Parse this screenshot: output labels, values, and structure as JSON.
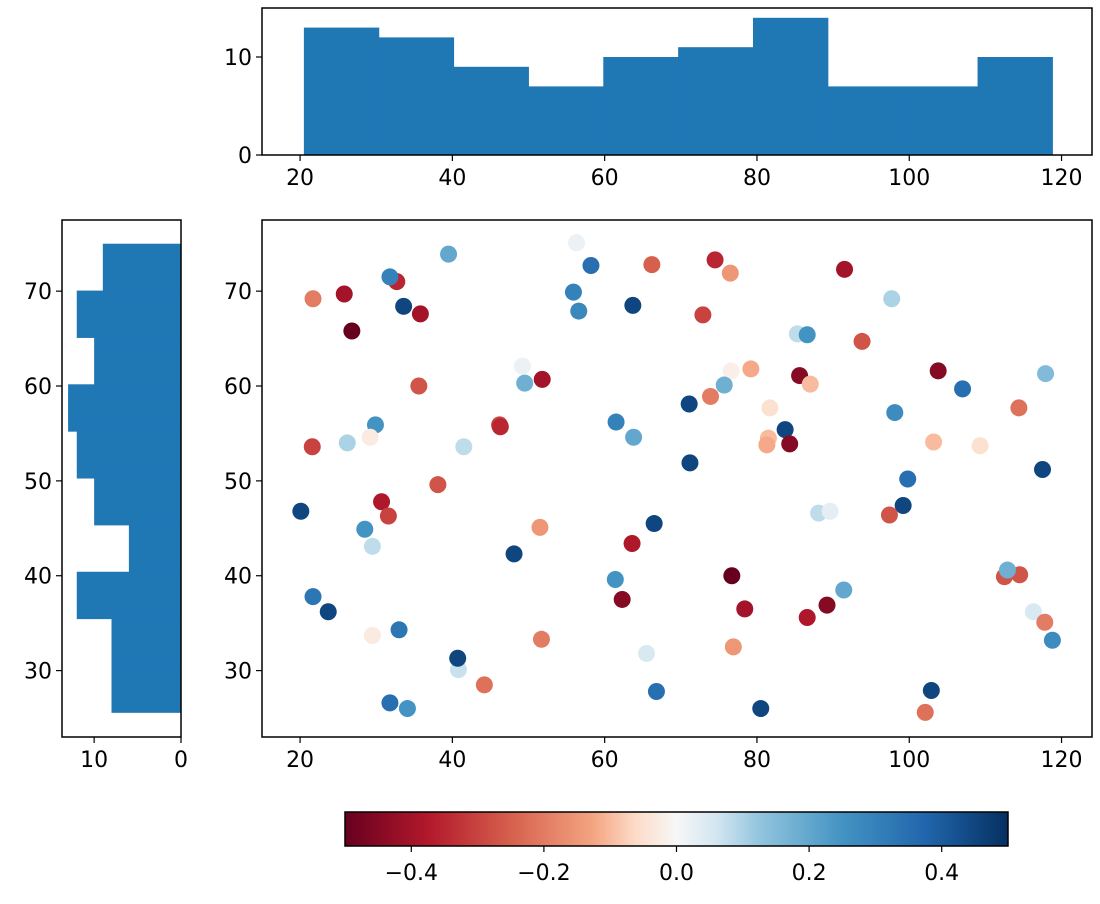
{
  "chart_data": {
    "type": "scatter",
    "title": "",
    "colormap": "RdBu",
    "color_range": [
      -0.5,
      0.5
    ],
    "main": {
      "xlim": [
        15,
        124
      ],
      "ylim": [
        23,
        77.5
      ],
      "xticks": [
        20,
        40,
        60,
        80,
        100,
        120
      ],
      "yticks": [
        30,
        40,
        50,
        60,
        70
      ],
      "points": [
        [
          21.7,
          69.2,
          -0.2
        ],
        [
          25.8,
          69.7,
          -0.4
        ],
        [
          26.8,
          65.8,
          -0.5
        ],
        [
          32.7,
          71.0,
          -0.35
        ],
        [
          31.8,
          71.5,
          0.3
        ],
        [
          33.6,
          68.4,
          0.45
        ],
        [
          35.8,
          67.6,
          -0.4
        ],
        [
          39.5,
          73.9,
          0.2
        ],
        [
          56.3,
          75.1,
          0.02
        ],
        [
          58.2,
          72.7,
          0.35
        ],
        [
          55.9,
          69.9,
          0.3
        ],
        [
          56.6,
          67.9,
          0.28
        ],
        [
          63.7,
          68.5,
          0.45
        ],
        [
          66.2,
          72.8,
          -0.25
        ],
        [
          74.5,
          73.3,
          -0.35
        ],
        [
          76.5,
          71.9,
          -0.15
        ],
        [
          72.9,
          67.5,
          -0.3
        ],
        [
          91.5,
          72.3,
          -0.4
        ],
        [
          97.7,
          69.2,
          0.1
        ],
        [
          93.8,
          64.7,
          -0.27
        ],
        [
          85.3,
          65.5,
          0.08
        ],
        [
          86.6,
          65.4,
          0.25
        ],
        [
          103.8,
          61.6,
          -0.45
        ],
        [
          107.0,
          59.7,
          0.35
        ],
        [
          117.9,
          61.3,
          0.15
        ],
        [
          114.4,
          57.7,
          -0.22
        ],
        [
          98.1,
          57.2,
          0.27
        ],
        [
          103.2,
          54.1,
          -0.1
        ],
        [
          109.3,
          53.7,
          -0.05
        ],
        [
          117.5,
          51.2,
          0.45
        ],
        [
          99.8,
          50.2,
          0.35
        ],
        [
          99.2,
          47.4,
          0.45
        ],
        [
          97.4,
          46.4,
          -0.27
        ],
        [
          88.1,
          46.6,
          0.08
        ],
        [
          89.6,
          46.8,
          0.03
        ],
        [
          85.6,
          61.1,
          -0.45
        ],
        [
          87.0,
          60.2,
          -0.1
        ],
        [
          79.2,
          61.8,
          -0.12
        ],
        [
          76.6,
          61.6,
          -0.02
        ],
        [
          75.7,
          60.1,
          0.18
        ],
        [
          73.9,
          58.9,
          -0.2
        ],
        [
          71.1,
          58.1,
          0.45
        ],
        [
          81.7,
          57.7,
          -0.05
        ],
        [
          81.5,
          54.5,
          -0.1
        ],
        [
          81.3,
          53.8,
          -0.12
        ],
        [
          83.7,
          55.4,
          0.45
        ],
        [
          84.3,
          53.9,
          -0.45
        ],
        [
          71.2,
          51.9,
          0.45
        ],
        [
          61.5,
          56.2,
          0.3
        ],
        [
          63.8,
          54.6,
          0.2
        ],
        [
          51.8,
          60.7,
          -0.4
        ],
        [
          49.2,
          62.1,
          0.02
        ],
        [
          49.5,
          60.3,
          0.18
        ],
        [
          46.2,
          55.9,
          -0.3
        ],
        [
          46.3,
          55.7,
          -0.35
        ],
        [
          41.5,
          53.6,
          0.08
        ],
        [
          35.6,
          60.0,
          -0.27
        ],
        [
          29.9,
          55.9,
          0.25
        ],
        [
          29.2,
          54.6,
          -0.03
        ],
        [
          26.2,
          54.0,
          0.1
        ],
        [
          21.6,
          53.6,
          -0.3
        ],
        [
          30.7,
          47.8,
          -0.38
        ],
        [
          31.6,
          46.3,
          -0.3
        ],
        [
          38.1,
          49.6,
          -0.27
        ],
        [
          20.1,
          46.8,
          0.45
        ],
        [
          28.5,
          44.9,
          0.25
        ],
        [
          29.5,
          43.1,
          0.08
        ],
        [
          51.5,
          45.1,
          -0.15
        ],
        [
          48.1,
          42.3,
          0.45
        ],
        [
          63.6,
          43.4,
          -0.38
        ],
        [
          66.5,
          45.5,
          0.45
        ],
        [
          61.4,
          39.6,
          0.25
        ],
        [
          62.3,
          37.5,
          -0.45
        ],
        [
          76.7,
          40.0,
          -0.5
        ],
        [
          78.4,
          36.5,
          -0.4
        ],
        [
          86.6,
          35.6,
          -0.38
        ],
        [
          89.2,
          36.9,
          -0.45
        ],
        [
          91.4,
          38.5,
          0.2
        ],
        [
          76.9,
          32.5,
          -0.15
        ],
        [
          65.5,
          31.8,
          0.05
        ],
        [
          66.8,
          27.8,
          0.35
        ],
        [
          80.5,
          26.0,
          0.45
        ],
        [
          102.9,
          27.9,
          0.45
        ],
        [
          102.1,
          25.6,
          -0.22
        ],
        [
          112.5,
          39.9,
          -0.27
        ],
        [
          114.5,
          40.1,
          -0.27
        ],
        [
          112.9,
          40.6,
          0.18
        ],
        [
          116.3,
          36.2,
          0.05
        ],
        [
          117.8,
          35.1,
          -0.2
        ],
        [
          118.8,
          33.2,
          0.27
        ],
        [
          21.7,
          37.8,
          0.33
        ],
        [
          23.7,
          36.2,
          0.45
        ],
        [
          29.5,
          33.7,
          -0.03
        ],
        [
          33.0,
          34.3,
          0.33
        ],
        [
          51.7,
          33.3,
          -0.2
        ],
        [
          40.8,
          30.1,
          0.07
        ],
        [
          40.7,
          31.3,
          0.45
        ],
        [
          44.2,
          28.5,
          -0.22
        ],
        [
          31.8,
          26.6,
          0.35
        ],
        [
          34.1,
          26.0,
          0.25
        ]
      ]
    },
    "top_histogram": {
      "type": "bar",
      "bin_edges": [
        20.5,
        30.33,
        40.16,
        49.99,
        59.82,
        69.65,
        79.48,
        89.31,
        99.14,
        108.97,
        118.8
      ],
      "counts": [
        13,
        12,
        9,
        7,
        10,
        11,
        14,
        7,
        7,
        10
      ],
      "xlim": [
        15,
        124
      ],
      "ylim": [
        0,
        15
      ],
      "xticks": [
        20,
        40,
        60,
        80,
        100,
        120
      ],
      "yticks": [
        0,
        10
      ],
      "color": "#1f77b4"
    },
    "left_histogram": {
      "type": "bar",
      "orientation": "horizontal",
      "bin_edges": [
        25.6,
        30.54,
        35.48,
        40.42,
        45.36,
        50.3,
        55.24,
        60.18,
        65.12,
        70.06,
        75.0
      ],
      "counts": [
        8,
        8,
        12,
        6,
        10,
        12,
        13,
        10,
        12,
        9
      ],
      "xlim": [
        13.7,
        0
      ],
      "ylim": [
        23,
        77.5
      ],
      "xticks": [
        10,
        0
      ],
      "yticks": [
        30,
        40,
        50,
        60,
        70
      ],
      "color": "#1f77b4"
    },
    "colorbar": {
      "orientation": "horizontal",
      "range": [
        -0.5,
        0.5
      ],
      "ticks": [
        -0.4,
        -0.2,
        0.0,
        0.2,
        0.4
      ],
      "tick_labels": [
        "−0.4",
        "−0.2",
        "0.0",
        "0.2",
        "0.4"
      ]
    }
  }
}
